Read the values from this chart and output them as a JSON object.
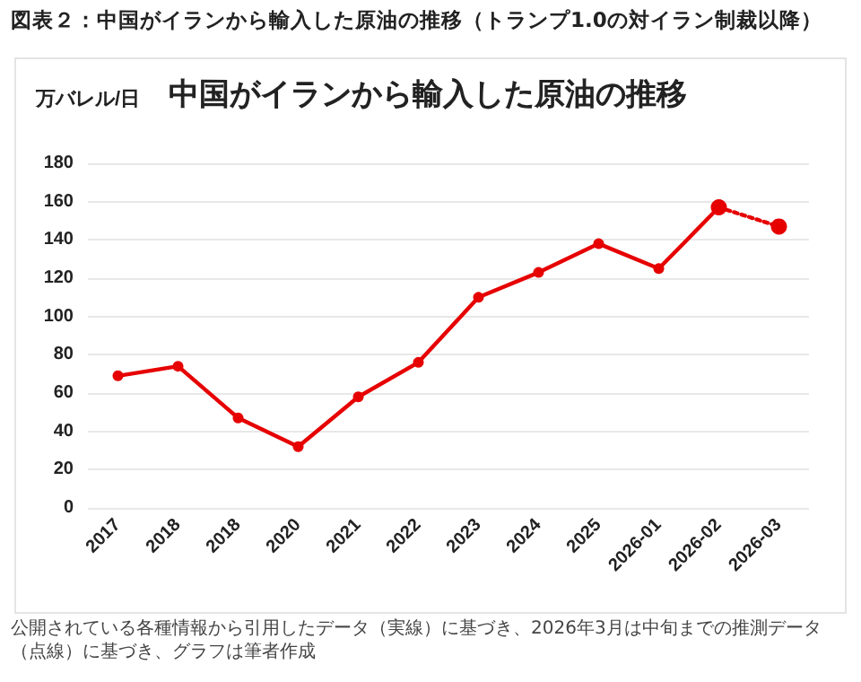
{
  "chart_data": {
    "type": "line",
    "title": "図表２：中国がイランから輸入した原油の推移（トランプ1.0の対イラン制裁以降）",
    "subtitle": "中国がイランから輸入した原油の推移",
    "ylabel": "万バレル/日",
    "categories": [
      "2017",
      "2018",
      "2018",
      "2020",
      "2021",
      "2022",
      "2023",
      "2024",
      "2025",
      "2026-01",
      "2026-02",
      "2026-03"
    ],
    "series": [
      {
        "color": "#e60000",
        "line_style": "solid",
        "values": [
          69,
          74,
          47,
          32,
          58,
          76,
          110,
          123,
          138,
          125,
          157,
          null
        ]
      },
      {
        "color": "#e60000",
        "line_style": "dotted",
        "values": [
          null,
          null,
          null,
          null,
          null,
          null,
          null,
          null,
          null,
          null,
          157,
          147
        ]
      }
    ],
    "ylim": [
      0,
      180
    ],
    "yticks": [
      0,
      20,
      40,
      60,
      80,
      100,
      120,
      140,
      160,
      180
    ],
    "grid": "y",
    "marker": "circle",
    "annotations": [
      "公開されている各種情報から引用したデータ（実線）に基づき、2026年3月は中旬までの推測データ（点線）に基づき、グラフは筆者作成"
    ]
  }
}
